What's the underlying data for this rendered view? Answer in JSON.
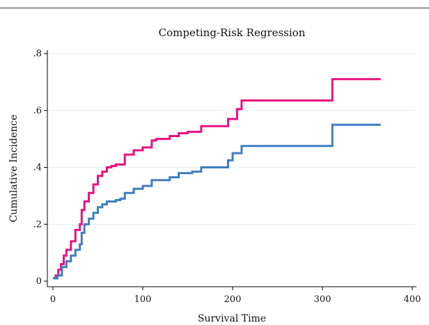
{
  "chart_data": {
    "type": "line",
    "title": "Competing-Risk Regression",
    "xlabel": "Survival Time",
    "ylabel": "Cumulative Incidence",
    "xlim": [
      0,
      400
    ],
    "ylim": [
      0,
      0.8
    ],
    "x_ticks": [
      0,
      100,
      200,
      300,
      400
    ],
    "x_tick_labels": [
      "0",
      "100",
      "200",
      "300",
      "400"
    ],
    "y_ticks": [
      0,
      0.2,
      0.4,
      0.6,
      0.8
    ],
    "y_tick_labels": [
      "0",
      ".2",
      ".4",
      ".6",
      ".8"
    ],
    "grid": true,
    "step": true,
    "series": [
      {
        "color": "#e8117f",
        "x": [
          0,
          3,
          6,
          9,
          12,
          15,
          20,
          25,
          30,
          32,
          35,
          40,
          45,
          50,
          55,
          60,
          65,
          70,
          80,
          90,
          100,
          110,
          115,
          130,
          140,
          150,
          165,
          180,
          195,
          200,
          205,
          210,
          311,
          365
        ],
        "y": [
          0.01,
          0.02,
          0.04,
          0.06,
          0.09,
          0.11,
          0.14,
          0.18,
          0.2,
          0.25,
          0.28,
          0.31,
          0.34,
          0.37,
          0.385,
          0.4,
          0.405,
          0.41,
          0.445,
          0.46,
          0.47,
          0.495,
          0.5,
          0.51,
          0.52,
          0.525,
          0.545,
          0.545,
          0.57,
          0.57,
          0.605,
          0.635,
          0.71,
          0.71
        ]
      },
      {
        "color": "#3e7dc2",
        "x": [
          0,
          5,
          10,
          15,
          20,
          25,
          30,
          32,
          35,
          40,
          45,
          50,
          55,
          60,
          70,
          75,
          80,
          90,
          100,
          110,
          130,
          140,
          155,
          165,
          180,
          195,
          200,
          210,
          311,
          365
        ],
        "y": [
          0.01,
          0.02,
          0.05,
          0.07,
          0.09,
          0.11,
          0.13,
          0.17,
          0.2,
          0.22,
          0.24,
          0.26,
          0.27,
          0.28,
          0.285,
          0.29,
          0.31,
          0.325,
          0.335,
          0.355,
          0.365,
          0.38,
          0.385,
          0.4,
          0.4,
          0.425,
          0.45,
          0.475,
          0.55,
          0.55
        ]
      }
    ]
  }
}
